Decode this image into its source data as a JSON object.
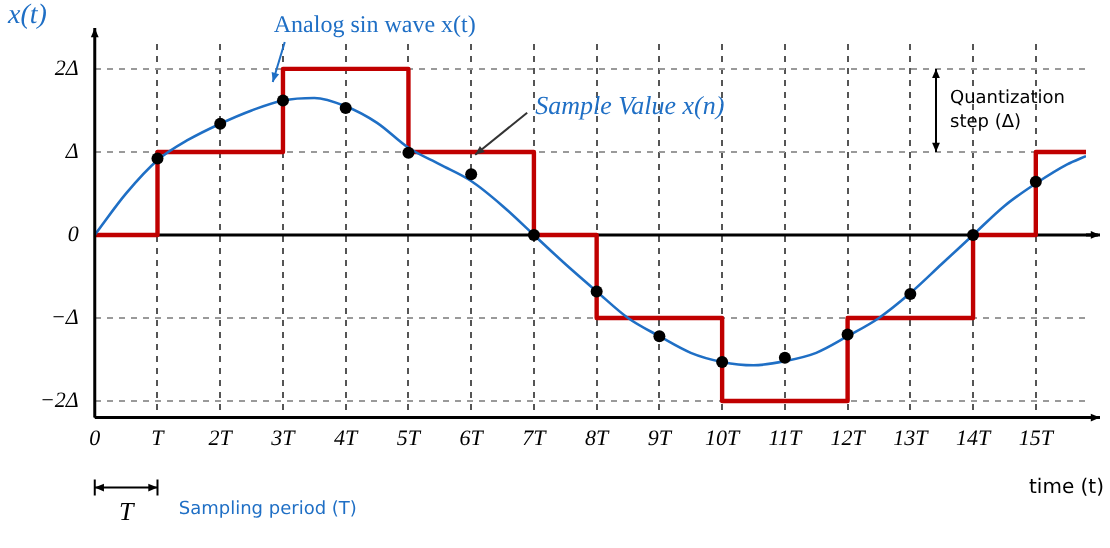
{
  "chart_data": {
    "type": "line",
    "xlabel": "time (t)",
    "ylabel": "x(t)",
    "xlim": [
      0,
      15.8
    ],
    "ylim": [
      -2.2,
      2.3
    ],
    "xticks": [
      0,
      {
        "value": 1,
        "label": "T"
      },
      {
        "value": 2,
        "label": "2T"
      },
      {
        "value": 3,
        "label": "3T"
      },
      {
        "value": 4,
        "label": "4T"
      },
      {
        "value": 5,
        "label": "5T"
      },
      {
        "value": 6,
        "label": "6T"
      },
      {
        "value": 7,
        "label": "7T"
      },
      {
        "value": 8,
        "label": "8T"
      },
      {
        "value": 9,
        "label": "9T"
      },
      {
        "value": 10,
        "label": "10T"
      },
      {
        "value": 11,
        "label": "11T"
      },
      {
        "value": 12,
        "label": "12T"
      },
      {
        "value": 13,
        "label": "13T"
      },
      {
        "value": 14,
        "label": "14T"
      },
      {
        "value": 15,
        "label": "15T"
      }
    ],
    "yticks": [
      {
        "value": -2,
        "label": "−2Δ"
      },
      {
        "value": -1,
        "label": "−Δ"
      },
      0,
      {
        "value": 1,
        "label": "Δ"
      },
      {
        "value": 2,
        "label": "2Δ"
      }
    ],
    "grid": true,
    "legend": false,
    "series": [
      {
        "color": "#1f6fc5",
        "marker": "none",
        "x": [
          0,
          0.5,
          1,
          1.5,
          2,
          2.5,
          3,
          3.5,
          4,
          4.5,
          5,
          5.5,
          6,
          6.5,
          7,
          7.5,
          8,
          8.5,
          9,
          9.5,
          10,
          10.5,
          11,
          11.5,
          12,
          12.5,
          13,
          13.5,
          14,
          14.5,
          15,
          15.5,
          15.8
        ],
        "values": [
          0,
          0.5,
          0.9,
          1.15,
          1.34,
          1.5,
          1.62,
          1.65,
          1.55,
          1.35,
          1.05,
          0.85,
          0.65,
          0.35,
          0,
          -0.35,
          -0.68,
          -1.0,
          -1.22,
          -1.42,
          -1.53,
          -1.57,
          -1.52,
          -1.42,
          -1.22,
          -1.0,
          -0.7,
          -0.35,
          0,
          0.35,
          0.62,
          0.85,
          0.95
        ]
      },
      {
        "type": "scatter",
        "color": "#000000",
        "marker": "circle",
        "x": [
          1,
          2,
          3,
          4,
          5,
          6,
          7,
          8,
          9,
          10,
          11,
          12,
          13,
          14,
          15
        ],
        "values": [
          0.92,
          1.34,
          1.62,
          1.53,
          0.99,
          0.73,
          0,
          -0.68,
          -1.22,
          -1.53,
          -1.48,
          -1.2,
          -0.71,
          0,
          0.64
        ]
      },
      {
        "type": "step",
        "color": "#c00000",
        "marker": "none",
        "x": [
          0,
          1,
          3,
          5,
          7,
          8,
          10,
          12,
          14,
          15,
          15.8
        ],
        "values": [
          0,
          1,
          2,
          1,
          0,
          -1,
          -2,
          -1,
          0,
          1,
          1
        ]
      }
    ],
    "ref_lines": [
      {
        "axis": "y",
        "value": 0,
        "color": "#000000"
      }
    ],
    "annotations": [
      "Analog sin wave x(t)",
      {
        "text": "Sample Value x(n)",
        "x": 6.0,
        "y": 0.87
      },
      "Quantization step (Δ)",
      "T",
      "Sampling period (T)"
    ]
  }
}
